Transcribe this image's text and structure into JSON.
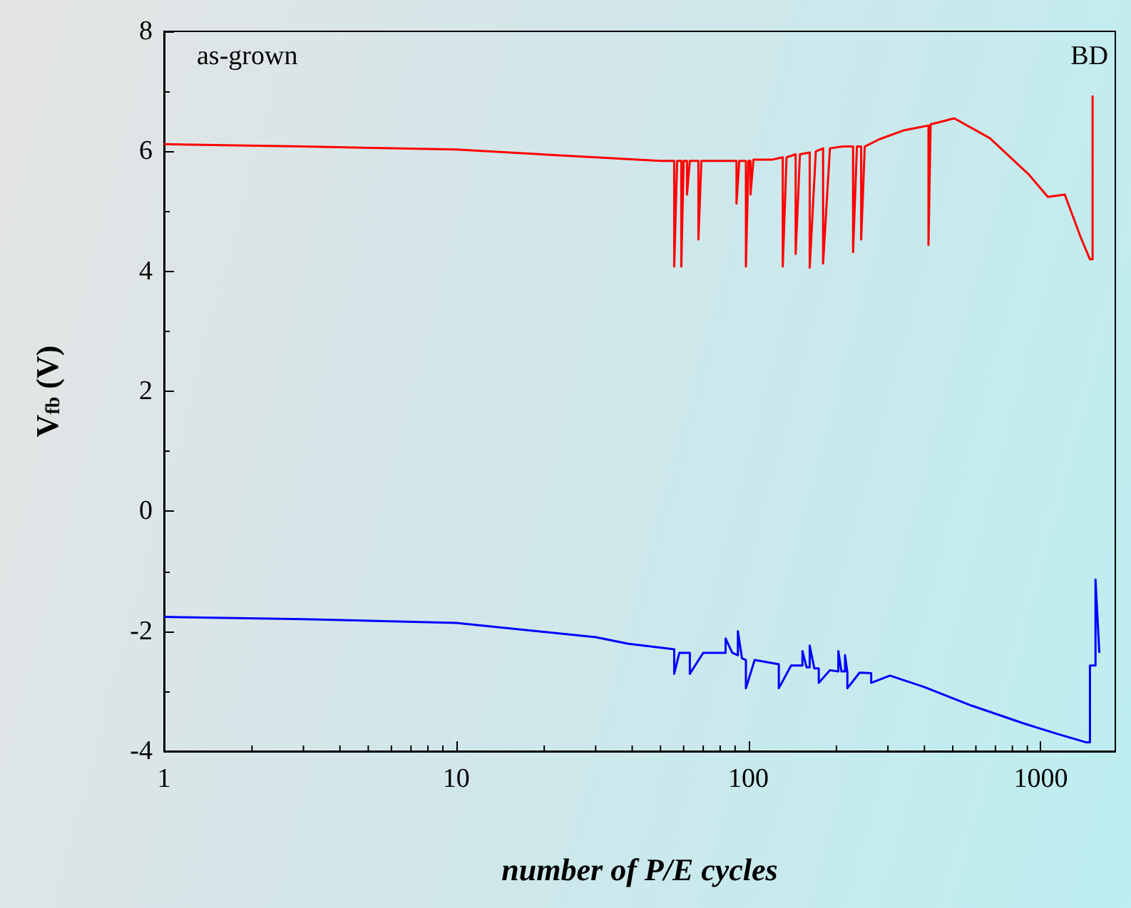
{
  "chart_data": {
    "type": "line",
    "xlabel": "number of P/E cycles",
    "ylabel": "V$_{fb}$ (V)",
    "annotations": [
      "as-grown",
      "BD"
    ],
    "log": "x",
    "xlim": [
      1,
      1800
    ],
    "xticks": [
      1,
      10,
      100,
      1000
    ],
    "ylim": [
      -4,
      8
    ],
    "yticks": [
      -4,
      -2,
      0,
      2,
      4,
      6,
      8
    ],
    "grid": false,
    "marker": "none",
    "line_style": "solid",
    "series": [
      {
        "color": "#ff0000",
        "x": [
          1,
          3,
          10,
          30,
          50,
          55.7,
          55.7,
          57,
          58.9,
          58.9,
          60,
          61.6,
          61.6,
          63,
          67.4,
          67.4,
          69,
          85,
          91,
          91,
          93,
          98,
          98,
          100,
          101.6,
          101.6,
          104,
          120,
          131,
          131,
          135,
          145,
          145,
          150,
          162,
          162,
          170,
          180,
          180,
          190,
          210,
          228,
          228,
          235,
          243,
          243,
          250,
          280,
          340,
          413,
          413,
          420,
          506,
          670,
          908,
          1058,
          1209,
          1372,
          1474,
          1505,
          1505
        ],
        "values": [
          6.12,
          6.08,
          6.03,
          5.9,
          5.84,
          5.84,
          4.08,
          5.84,
          5.84,
          4.08,
          5.84,
          5.84,
          5.28,
          5.84,
          5.84,
          4.53,
          5.84,
          5.84,
          5.84,
          5.13,
          5.84,
          5.84,
          4.08,
          5.84,
          5.84,
          5.28,
          5.86,
          5.86,
          5.9,
          4.08,
          5.9,
          5.95,
          4.29,
          5.95,
          5.98,
          4.06,
          6.0,
          6.05,
          4.13,
          6.05,
          6.08,
          6.08,
          4.32,
          6.08,
          6.08,
          4.53,
          6.08,
          6.2,
          6.35,
          6.43,
          4.44,
          6.45,
          6.55,
          6.22,
          5.62,
          5.24,
          5.28,
          4.56,
          4.2,
          4.2,
          6.93
        ]
      },
      {
        "color": "#0000ff",
        "x": [
          1,
          3,
          10,
          30,
          38.8,
          55.7,
          55.7,
          58,
          63,
          63,
          70,
          83.5,
          83.5,
          88,
          92,
          92,
          95,
          98,
          98,
          105,
          127,
          127,
          140,
          153,
          153,
          158,
          162,
          162,
          168,
          174,
          174,
          190,
          203,
          203,
          208,
          214,
          214,
          218,
          218,
          240,
          263,
          263,
          305,
          399,
          580,
          878,
          1138,
          1426,
          1474,
          1474,
          1540,
          1540,
          1587
        ],
        "values": [
          -1.76,
          -1.8,
          -1.86,
          -2.1,
          -2.21,
          -2.3,
          -2.71,
          -2.36,
          -2.36,
          -2.71,
          -2.36,
          -2.36,
          -2.12,
          -2.36,
          -2.4,
          -2.0,
          -2.45,
          -2.48,
          -2.95,
          -2.48,
          -2.55,
          -2.95,
          -2.57,
          -2.57,
          -2.33,
          -2.6,
          -2.6,
          -2.24,
          -2.62,
          -2.62,
          -2.86,
          -2.65,
          -2.67,
          -2.33,
          -2.67,
          -2.67,
          -2.4,
          -2.69,
          -2.95,
          -2.69,
          -2.7,
          -2.86,
          -2.74,
          -2.93,
          -3.24,
          -3.54,
          -3.71,
          -3.85,
          -3.85,
          -2.57,
          -2.57,
          -1.14,
          -2.36
        ]
      }
    ]
  }
}
